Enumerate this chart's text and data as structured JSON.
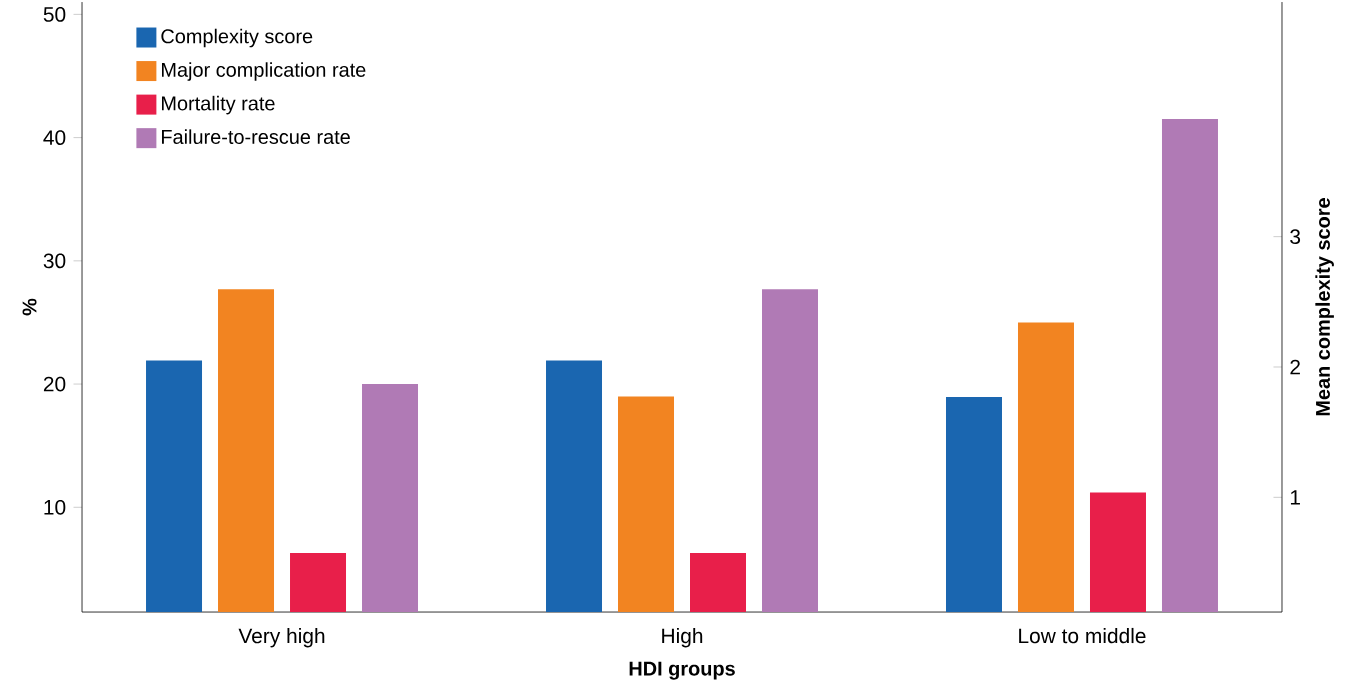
{
  "chart_data": {
    "type": "bar",
    "xlabel": "HDI groups",
    "ylabel": "%",
    "y2label": "Mean complexity score",
    "categories": [
      "Very high",
      "High",
      "Low to middle"
    ],
    "series": [
      {
        "name": "Complexity score",
        "color": "#1a66b0",
        "axis": "y2",
        "values": [
          2.05,
          2.05,
          1.77
        ]
      },
      {
        "name": "Major complication rate",
        "color": "#f28421",
        "values": [
          27.7,
          19,
          25
        ]
      },
      {
        "name": "Mortality rate",
        "color": "#e81f4a",
        "values": [
          6.3,
          6.3,
          11.2
        ]
      },
      {
        "name": "Failure-to-rescue rate",
        "color": "#b07ab5",
        "values": [
          20,
          27.7,
          41.5
        ]
      }
    ],
    "ylim": [
      1.5,
      51
    ],
    "yticks": [
      10,
      20,
      30,
      40,
      50
    ],
    "y2lim": [
      0.12,
      4.8
    ],
    "y2ticks": [
      1,
      2,
      3
    ],
    "legend": "top left",
    "grid": false
  }
}
